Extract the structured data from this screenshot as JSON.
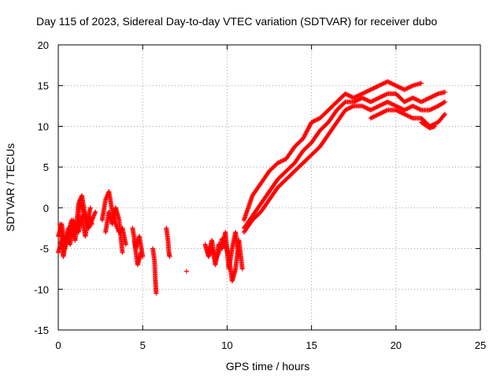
{
  "chart_data": {
    "type": "scatter",
    "title": "Day 115 of 2023, Sidereal Day-to-day VTEC variation (SDTVAR) for receiver dubo",
    "xlabel": "GPS time / hours",
    "ylabel": "SDTVAR / TECUs",
    "xlim": [
      0,
      25
    ],
    "ylim": [
      -15,
      20
    ],
    "xticks": [
      0,
      5,
      10,
      15,
      20,
      25
    ],
    "yticks": [
      -15,
      -10,
      -5,
      0,
      5,
      10,
      15,
      20
    ],
    "grid": true,
    "marker": "+",
    "color": "#ff0000",
    "series": [
      {
        "name": "SDTVAR",
        "segments": [
          {
            "x": [
              0.0,
              0.2,
              0.4,
              0.6,
              0.8,
              1.0,
              1.2,
              1.4,
              1.6,
              1.8,
              2.0,
              2.2
            ],
            "y": [
              -3.5,
              -2.0,
              -4.5,
              -3.0,
              -1.5,
              -4.0,
              0.5,
              1.5,
              -1.0,
              -2.5,
              -1.5,
              -0.5
            ]
          },
          {
            "x": [
              0.0,
              0.2,
              0.4,
              0.6,
              0.8,
              1.0,
              1.2,
              1.4,
              1.6,
              1.8,
              2.0
            ],
            "y": [
              -5.5,
              -4.0,
              -5.0,
              -2.5,
              -3.5,
              -2.0,
              -3.0,
              -1.0,
              -3.5,
              -1.0,
              -2.0
            ]
          },
          {
            "x": [
              0.1,
              0.3,
              0.5,
              0.7,
              0.9,
              1.1,
              1.3,
              1.5,
              1.7,
              1.9
            ],
            "y": [
              -2.0,
              -6.0,
              -3.5,
              -4.5,
              -1.5,
              -3.0,
              1.0,
              -0.5,
              -2.0,
              0.0
            ]
          },
          {
            "x": [
              2.6,
              2.8,
              3.0,
              3.2,
              3.4,
              3.6,
              3.8,
              4.0
            ],
            "y": [
              -1.5,
              1.0,
              2.0,
              -0.5,
              -2.0,
              -3.0,
              -2.5,
              -4.5
            ]
          },
          {
            "x": [
              2.8,
              3.0,
              3.2,
              3.4,
              3.6,
              3.8
            ],
            "y": [
              -3.0,
              -0.5,
              -2.0,
              0.0,
              -1.5,
              -5.5
            ]
          },
          {
            "x": [
              4.4,
              4.6,
              4.8,
              5.0
            ],
            "y": [
              -2.5,
              -5.0,
              -3.5,
              -6.0
            ]
          },
          {
            "x": [
              4.5,
              4.7,
              4.9
            ],
            "y": [
              -4.0,
              -7.0,
              -5.5
            ]
          },
          {
            "x": [
              5.6,
              5.7,
              5.75,
              5.8
            ],
            "y": [
              -5.0,
              -6.5,
              -8.8,
              -10.5
            ]
          },
          {
            "x": [
              6.4,
              6.5,
              6.55,
              6.6
            ],
            "y": [
              -2.5,
              -4.0,
              -5.5,
              -6.0
            ]
          },
          {
            "x": [
              7.6
            ],
            "y": [
              -7.8
            ]
          },
          {
            "x": [
              8.7,
              8.9,
              9.1,
              9.3,
              9.5,
              9.7,
              9.9,
              10.1,
              10.3,
              10.5,
              10.7,
              10.9
            ],
            "y": [
              -4.5,
              -6.0,
              -5.0,
              -6.5,
              -5.5,
              -3.8,
              -4.5,
              -6.0,
              -9.0,
              -7.5,
              -4.0,
              -7.5
            ]
          },
          {
            "x": [
              8.9,
              9.1,
              9.3,
              9.5,
              9.7,
              9.9,
              10.1,
              10.3,
              10.5,
              10.7
            ],
            "y": [
              -5.5,
              -4.0,
              -7.0,
              -4.5,
              -5.0,
              -3.0,
              -7.5,
              -5.0,
              -3.0,
              -6.0
            ]
          },
          {
            "x": [
              11.0,
              11.5,
              12.0,
              12.5,
              13.0,
              13.5,
              14.0,
              14.5,
              15.0,
              15.5,
              16.0,
              16.5,
              17.0,
              17.5,
              18.0,
              18.5,
              19.0,
              19.5,
              20.0,
              20.5,
              21.0,
              21.5
            ],
            "y": [
              -1.5,
              1.5,
              3.0,
              4.5,
              5.5,
              6.0,
              7.5,
              8.5,
              10.5,
              11.0,
              12.0,
              13.0,
              14.0,
              13.5,
              14.0,
              14.5,
              15.0,
              15.5,
              15.0,
              14.5,
              15.0,
              15.3
            ]
          },
          {
            "x": [
              11.0,
              11.5,
              12.0,
              12.5,
              13.0,
              13.5,
              14.0,
              14.5,
              15.0,
              15.5,
              16.0,
              16.5,
              17.0,
              17.5,
              18.0,
              18.5,
              19.0,
              19.5,
              20.0,
              20.5,
              21.0,
              21.5,
              22.0,
              22.5,
              22.9
            ],
            "y": [
              -2.5,
              -1.0,
              0.5,
              2.0,
              3.5,
              4.5,
              5.5,
              7.0,
              8.0,
              9.5,
              10.5,
              12.0,
              13.0,
              13.0,
              13.5,
              13.0,
              13.5,
              14.0,
              14.0,
              13.0,
              13.5,
              13.0,
              13.5,
              14.0,
              14.2
            ]
          },
          {
            "x": [
              11.0,
              11.5,
              12.0,
              12.5,
              13.0,
              13.5,
              14.0,
              14.5,
              15.0,
              15.5,
              16.0,
              16.5,
              17.0,
              17.5,
              18.0,
              18.5,
              19.0,
              19.5,
              20.0,
              20.5,
              21.0,
              21.5,
              22.0,
              22.5,
              22.9
            ],
            "y": [
              -3.0,
              -1.5,
              -0.5,
              1.0,
              2.5,
              3.5,
              4.5,
              5.5,
              6.5,
              7.5,
              9.0,
              10.5,
              12.0,
              12.5,
              12.5,
              12.0,
              12.5,
              13.0,
              12.5,
              12.0,
              12.5,
              12.0,
              12.0,
              12.5,
              13.0
            ]
          },
          {
            "x": [
              18.5,
              19.0,
              19.5,
              20.0,
              20.5,
              21.0,
              21.5,
              22.0,
              22.5,
              22.9
            ],
            "y": [
              11.0,
              11.5,
              12.0,
              12.0,
              11.5,
              11.0,
              11.0,
              10.0,
              10.5,
              11.5
            ]
          },
          {
            "x": [
              21.5,
              22.0,
              22.3
            ],
            "y": [
              10.5,
              9.8,
              10.0
            ]
          }
        ]
      }
    ]
  }
}
